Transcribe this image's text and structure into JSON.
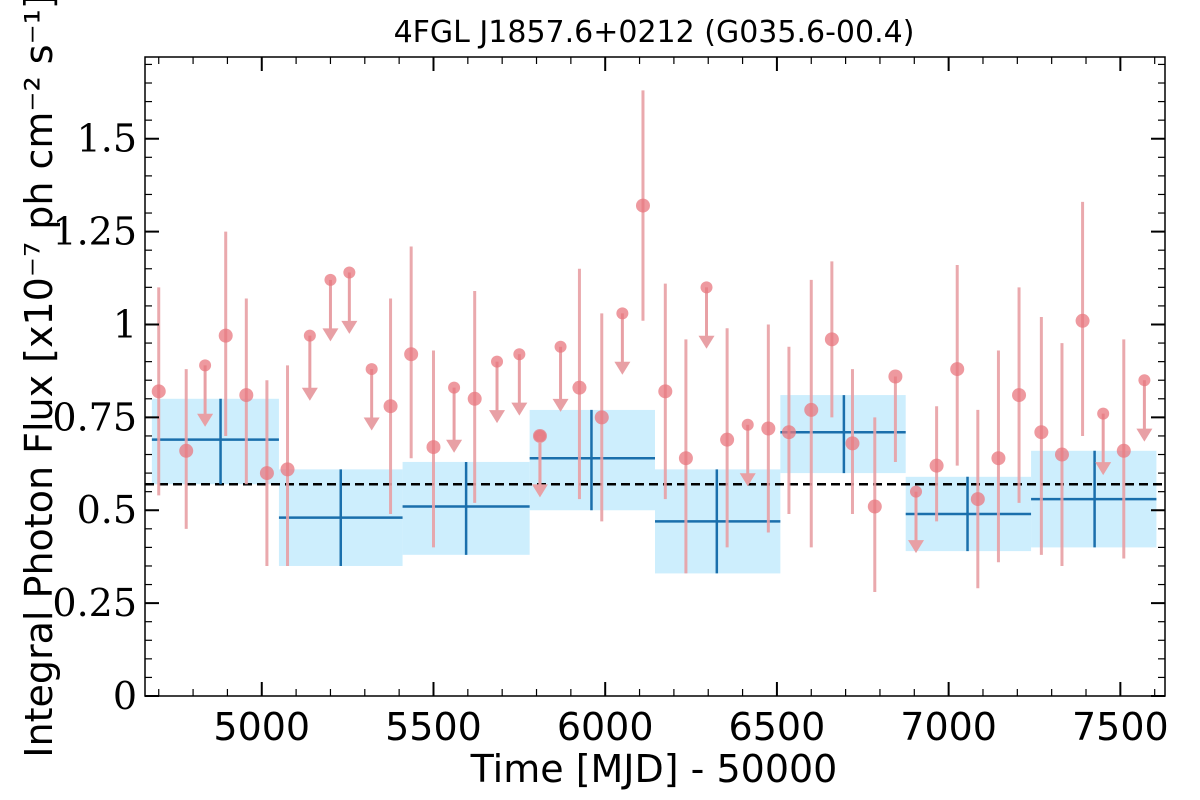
{
  "chart_data": {
    "type": "scatter",
    "title": "4FGL J1857.6+0212 (G035.6-00.4)",
    "xlabel": "Time [MJD] - 50000",
    "ylabel": "Integral Photon Flux [x10⁻⁷ ph cm⁻² s⁻¹]",
    "xlim": [
      4660,
      7630
    ],
    "ylim": [
      0,
      1.72
    ],
    "xticks": [
      5000,
      5500,
      6000,
      6500,
      7000,
      7500
    ],
    "xtick_labels": [
      "5000",
      "5500",
      "6000",
      "6500",
      "7000",
      "7500"
    ],
    "yticks": [
      0,
      0.25,
      0.5,
      0.75,
      1.0,
      1.25,
      1.5
    ],
    "ytick_labels": [
      "0",
      "0.25",
      "0.5",
      "0.75",
      "1",
      "1.25",
      "1.5"
    ],
    "mean_flux": 0.57,
    "colors": {
      "points": "#e8777f",
      "errorbars": "#e8a0a5",
      "bins": "#1a6fac",
      "bin_band": "#cdeefd",
      "mean_line": "#000000"
    },
    "series": [
      {
        "kind": "measurements",
        "points": [
          {
            "x": 4700,
            "y": 0.82,
            "lo": 0.54,
            "hi": 1.1
          },
          {
            "x": 4780,
            "y": 0.66,
            "lo": 0.45,
            "hi": 0.88
          },
          {
            "x": 4895,
            "y": 0.97,
            "lo": 0.7,
            "hi": 1.25
          },
          {
            "x": 4955,
            "y": 0.81,
            "lo": 0.57,
            "hi": 1.07
          },
          {
            "x": 5015,
            "y": 0.6,
            "lo": 0.35,
            "hi": 0.85
          },
          {
            "x": 5075,
            "y": 0.61,
            "lo": 0.35,
            "hi": 0.89
          },
          {
            "x": 5375,
            "y": 0.78,
            "lo": 0.49,
            "hi": 1.07
          },
          {
            "x": 5435,
            "y": 0.92,
            "lo": 0.64,
            "hi": 1.21
          },
          {
            "x": 5500,
            "y": 0.67,
            "lo": 0.4,
            "hi": 0.93
          },
          {
            "x": 5620,
            "y": 0.8,
            "lo": 0.52,
            "hi": 1.09
          },
          {
            "x": 5810,
            "y": 0.7,
            "lo": 0.55,
            "hi": 0.7
          },
          {
            "x": 5925,
            "y": 0.83,
            "lo": 0.53,
            "hi": 1.15
          },
          {
            "x": 5990,
            "y": 0.75,
            "lo": 0.47,
            "hi": 1.03
          },
          {
            "x": 6110,
            "y": 1.32,
            "lo": 1.01,
            "hi": 1.63
          },
          {
            "x": 6175,
            "y": 0.82,
            "lo": 0.53,
            "hi": 1.11
          },
          {
            "x": 6235,
            "y": 0.64,
            "lo": 0.33,
            "hi": 0.96
          },
          {
            "x": 6355,
            "y": 0.69,
            "lo": 0.4,
            "hi": 0.99
          },
          {
            "x": 6475,
            "y": 0.72,
            "lo": 0.44,
            "hi": 1.0
          },
          {
            "x": 6535,
            "y": 0.71,
            "lo": 0.49,
            "hi": 0.94
          },
          {
            "x": 6600,
            "y": 0.77,
            "lo": 0.4,
            "hi": 1.12
          },
          {
            "x": 6660,
            "y": 0.96,
            "lo": 0.75,
            "hi": 1.17
          },
          {
            "x": 6720,
            "y": 0.68,
            "lo": 0.49,
            "hi": 0.88
          },
          {
            "x": 6785,
            "y": 0.51,
            "lo": 0.28,
            "hi": 0.75
          },
          {
            "x": 6845,
            "y": 0.86,
            "lo": 0.63,
            "hi": 0.86
          },
          {
            "x": 6965,
            "y": 0.62,
            "lo": 0.47,
            "hi": 0.78
          },
          {
            "x": 7025,
            "y": 0.88,
            "lo": 0.62,
            "hi": 1.16
          },
          {
            "x": 7085,
            "y": 0.53,
            "lo": 0.29,
            "hi": 0.77
          },
          {
            "x": 7145,
            "y": 0.64,
            "lo": 0.36,
            "hi": 0.93
          },
          {
            "x": 7205,
            "y": 0.81,
            "lo": 0.52,
            "hi": 1.1
          },
          {
            "x": 7270,
            "y": 0.71,
            "lo": 0.38,
            "hi": 1.02
          },
          {
            "x": 7330,
            "y": 0.65,
            "lo": 0.35,
            "hi": 0.95
          },
          {
            "x": 7390,
            "y": 1.01,
            "lo": 0.7,
            "hi": 1.33
          },
          {
            "x": 7510,
            "y": 0.66,
            "lo": 0.37,
            "hi": 0.96
          }
        ]
      },
      {
        "kind": "upper_limits",
        "points": [
          {
            "x": 4835,
            "y": 0.89,
            "arrow_to": 0.73
          },
          {
            "x": 5140,
            "y": 0.97,
            "arrow_to": 0.8
          },
          {
            "x": 5200,
            "y": 1.12,
            "arrow_to": 0.96
          },
          {
            "x": 5255,
            "y": 1.14,
            "arrow_to": 0.98
          },
          {
            "x": 5320,
            "y": 0.88,
            "arrow_to": 0.72
          },
          {
            "x": 5560,
            "y": 0.83,
            "arrow_to": 0.66
          },
          {
            "x": 5685,
            "y": 0.9,
            "arrow_to": 0.74
          },
          {
            "x": 5750,
            "y": 0.92,
            "arrow_to": 0.76
          },
          {
            "x": 5810,
            "y": 0.7,
            "arrow_to": 0.54
          },
          {
            "x": 5870,
            "y": 0.94,
            "arrow_to": 0.77
          },
          {
            "x": 6050,
            "y": 1.03,
            "arrow_to": 0.87
          },
          {
            "x": 6295,
            "y": 1.1,
            "arrow_to": 0.94
          },
          {
            "x": 6415,
            "y": 0.73,
            "arrow_to": 0.57
          },
          {
            "x": 6905,
            "y": 0.55,
            "arrow_to": 0.39
          },
          {
            "x": 7450,
            "y": 0.76,
            "arrow_to": 0.6
          },
          {
            "x": 7570,
            "y": 0.85,
            "arrow_to": 0.69
          }
        ]
      },
      {
        "kind": "binned",
        "bins": [
          {
            "x0": 4680,
            "x1": 5050,
            "x": 4880,
            "y": 0.69,
            "lo": 0.57,
            "hi": 0.8
          },
          {
            "x0": 5050,
            "x1": 5410,
            "x": 5230,
            "y": 0.48,
            "lo": 0.35,
            "hi": 0.61
          },
          {
            "x0": 5410,
            "x1": 5780,
            "x": 5595,
            "y": 0.51,
            "lo": 0.38,
            "hi": 0.63
          },
          {
            "x0": 5780,
            "x1": 6145,
            "x": 5960,
            "y": 0.64,
            "lo": 0.5,
            "hi": 0.77
          },
          {
            "x0": 6145,
            "x1": 6510,
            "x": 6325,
            "y": 0.47,
            "lo": 0.33,
            "hi": 0.61
          },
          {
            "x0": 6510,
            "x1": 6875,
            "x": 6695,
            "y": 0.71,
            "lo": 0.6,
            "hi": 0.81
          },
          {
            "x0": 6875,
            "x1": 7240,
            "x": 7055,
            "y": 0.49,
            "lo": 0.39,
            "hi": 0.59
          },
          {
            "x0": 7240,
            "x1": 7605,
            "x": 7425,
            "y": 0.53,
            "lo": 0.4,
            "hi": 0.66
          }
        ]
      }
    ]
  }
}
